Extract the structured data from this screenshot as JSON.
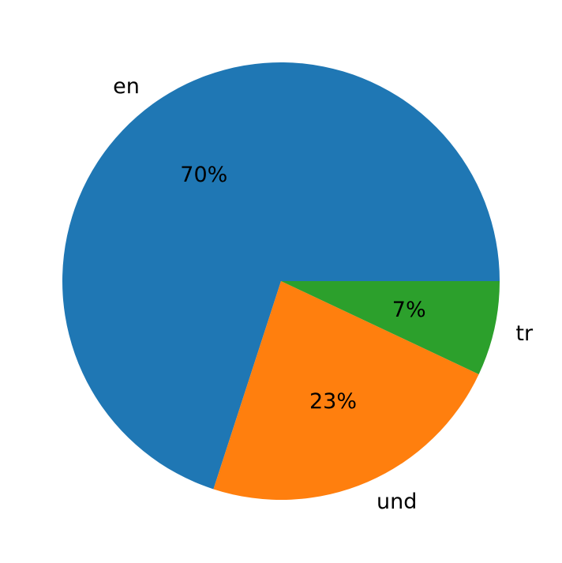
{
  "chart_data": {
    "type": "pie",
    "categories": [
      "en",
      "und",
      "tr"
    ],
    "values": [
      70,
      23,
      7
    ],
    "value_labels": [
      "70%",
      "23%",
      "7%"
    ],
    "colors": [
      "#1f77b4",
      "#ff7f0e",
      "#2ca02c"
    ],
    "start_angle_deg": 0,
    "direction": "counterclockwise",
    "title": ""
  }
}
